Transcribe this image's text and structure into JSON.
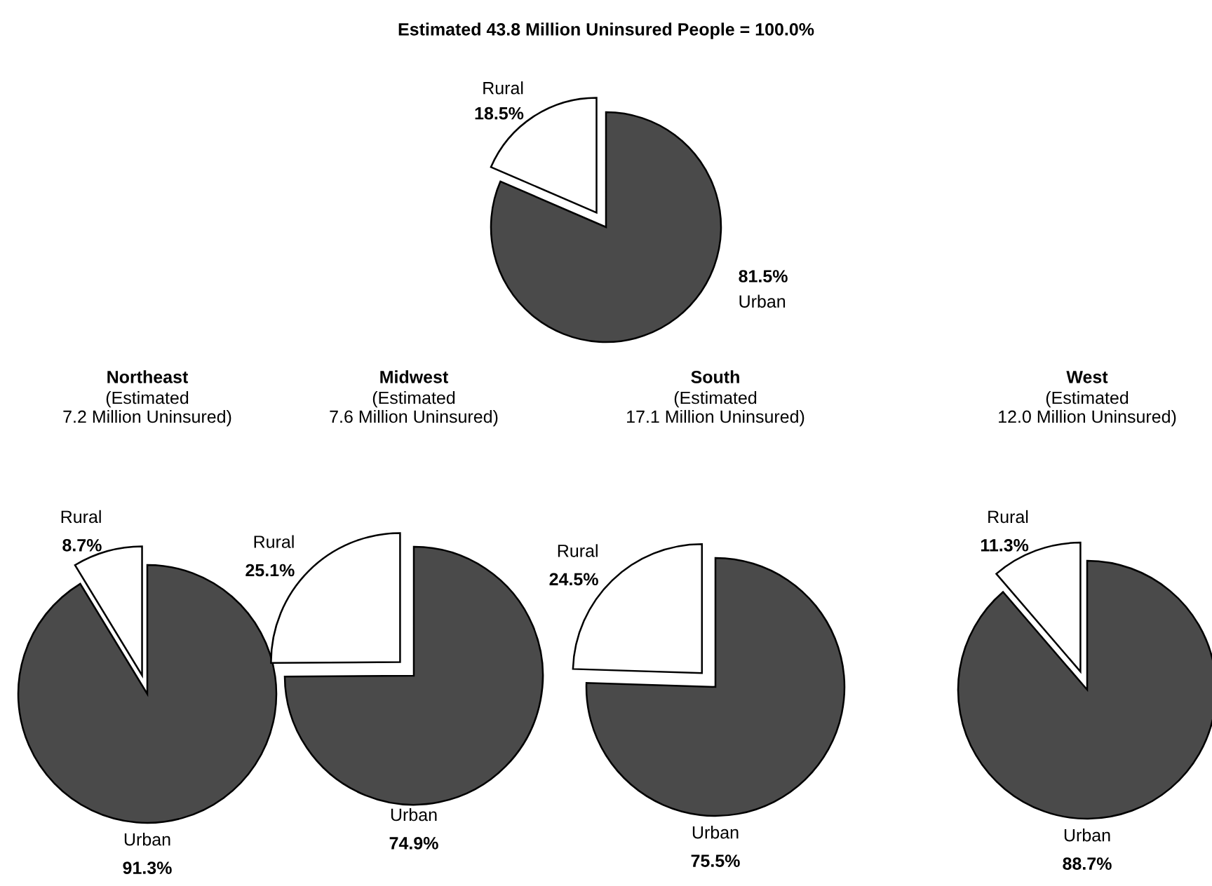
{
  "chart_data": [
    {
      "type": "pie",
      "title": "Estimated 43.8 Million Uninsured People = 100.0%",
      "categories": [
        "Rural",
        "Urban"
      ],
      "values": [
        18.5,
        81.5
      ],
      "colors": [
        "#ffffff",
        "#4a4a4a"
      ],
      "value_labels": [
        "18.5%",
        "81.5%"
      ]
    },
    {
      "type": "pie",
      "title": "Northeast",
      "subtitle": "(Estimated\n7.2 Million Uninsured)",
      "categories": [
        "Rural",
        "Urban"
      ],
      "values": [
        8.7,
        91.3
      ],
      "colors": [
        "#ffffff",
        "#4a4a4a"
      ],
      "value_labels": [
        "8.7%",
        "91.3%"
      ]
    },
    {
      "type": "pie",
      "title": "Midwest",
      "subtitle": "(Estimated\n7.6 Million Uninsured)",
      "categories": [
        "Rural",
        "Urban"
      ],
      "values": [
        25.1,
        74.9
      ],
      "colors": [
        "#ffffff",
        "#4a4a4a"
      ],
      "value_labels": [
        "25.1%",
        "74.9%"
      ]
    },
    {
      "type": "pie",
      "title": "South",
      "subtitle": "(Estimated\n17.1 Million Uninsured)",
      "categories": [
        "Rural",
        "Urban"
      ],
      "values": [
        24.5,
        75.5
      ],
      "colors": [
        "#ffffff",
        "#4a4a4a"
      ],
      "value_labels": [
        "24.5%",
        "75.5%"
      ]
    },
    {
      "type": "pie",
      "title": "West",
      "subtitle": "(Estimated\n12.0 Million Uninsured)",
      "categories": [
        "Rural",
        "Urban"
      ],
      "values": [
        11.3,
        88.7
      ],
      "colors": [
        "#ffffff",
        "#4a4a4a"
      ],
      "value_labels": [
        "11.3%",
        "88.7%"
      ]
    }
  ]
}
